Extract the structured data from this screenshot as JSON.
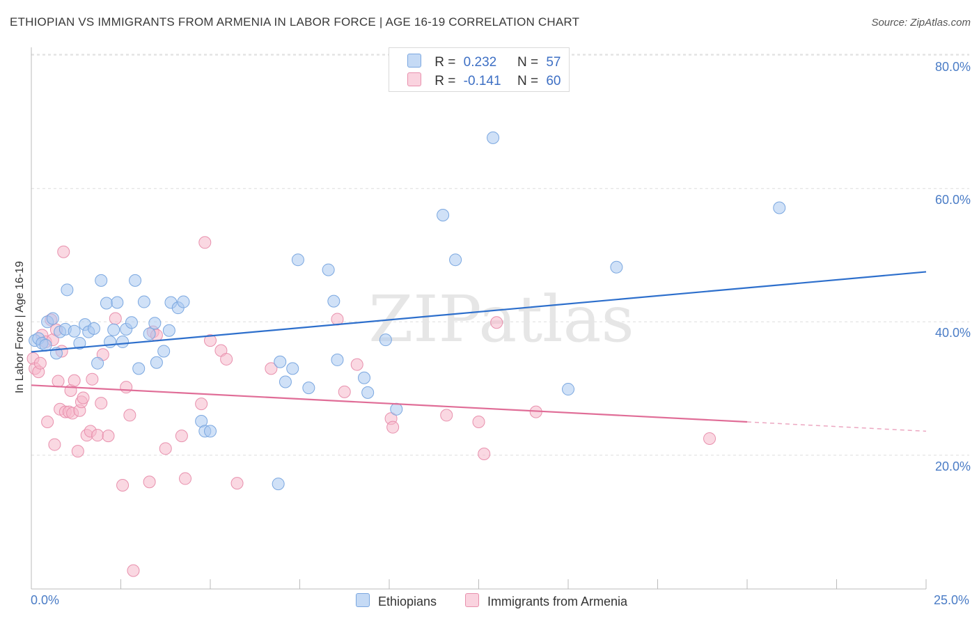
{
  "chart_data": {
    "type": "scatter",
    "title": "ETHIOPIAN VS IMMIGRANTS FROM ARMENIA IN LABOR FORCE | AGE 16-19 CORRELATION CHART",
    "source": "Source: ZipAtlas.com",
    "xlabel": "",
    "ylabel": "In Labor Force | Age 16-19",
    "xlim": [
      0,
      25
    ],
    "ylim": [
      0,
      83
    ],
    "x_tick_labels": [
      "0.0%",
      "25.0%"
    ],
    "y_tick_labels": [
      "80.0%",
      "60.0%",
      "40.0%",
      "20.0%"
    ],
    "y_ticks": [
      80,
      60,
      40,
      20
    ],
    "watermark": "ZIPatlas",
    "colors": {
      "ethiopians_fill": "#a9c8f0",
      "ethiopians_stroke": "#7aa7e0",
      "ethiopians_line": "#2d6fcc",
      "armenia_fill": "#f5b8cb",
      "armenia_stroke": "#e890ad",
      "armenia_line": "#e06d97",
      "axis_text": "#4a7cc6",
      "grid": "#dddddd"
    },
    "legend": {
      "rows": [
        {
          "r_label": "R =",
          "r_value": "0.232",
          "n_label": "N =",
          "n_value": "57"
        },
        {
          "r_label": "R =",
          "r_value": "-0.141",
          "n_label": "N =",
          "n_value": "60"
        }
      ]
    },
    "series": [
      {
        "name": "Ethiopians",
        "trend": {
          "x0": 0,
          "y0": 35.5,
          "x1": 25,
          "y1": 47.5
        },
        "points": [
          [
            0.1,
            37.2
          ],
          [
            0.2,
            37.5
          ],
          [
            0.3,
            36.8
          ],
          [
            0.4,
            36.5
          ],
          [
            0.45,
            40.0
          ],
          [
            0.6,
            40.5
          ],
          [
            0.7,
            35.3
          ],
          [
            0.8,
            38.5
          ],
          [
            0.95,
            38.9
          ],
          [
            1.0,
            44.8
          ],
          [
            1.2,
            38.6
          ],
          [
            1.35,
            36.8
          ],
          [
            1.5,
            39.6
          ],
          [
            1.6,
            38.5
          ],
          [
            1.75,
            39.0
          ],
          [
            1.85,
            33.8
          ],
          [
            1.95,
            46.2
          ],
          [
            2.1,
            42.8
          ],
          [
            2.2,
            37.0
          ],
          [
            2.3,
            38.8
          ],
          [
            2.4,
            42.9
          ],
          [
            2.55,
            37.0
          ],
          [
            2.65,
            38.9
          ],
          [
            2.8,
            39.9
          ],
          [
            2.9,
            46.2
          ],
          [
            3.0,
            33.0
          ],
          [
            3.15,
            43.0
          ],
          [
            3.3,
            38.2
          ],
          [
            3.45,
            39.8
          ],
          [
            3.5,
            33.9
          ],
          [
            3.7,
            35.6
          ],
          [
            3.85,
            38.7
          ],
          [
            3.9,
            42.9
          ],
          [
            4.1,
            42.1
          ],
          [
            4.25,
            43.0
          ],
          [
            4.75,
            25.1
          ],
          [
            4.85,
            23.6
          ],
          [
            5.0,
            23.6
          ],
          [
            6.9,
            15.7
          ],
          [
            6.95,
            34.0
          ],
          [
            7.1,
            31.0
          ],
          [
            7.3,
            33.0
          ],
          [
            7.45,
            49.3
          ],
          [
            7.75,
            30.1
          ],
          [
            8.3,
            47.8
          ],
          [
            8.45,
            43.1
          ],
          [
            8.55,
            34.3
          ],
          [
            9.3,
            31.6
          ],
          [
            9.4,
            29.4
          ],
          [
            9.9,
            37.3
          ],
          [
            10.2,
            26.9
          ],
          [
            11.5,
            56.0
          ],
          [
            11.85,
            49.3
          ],
          [
            12.9,
            67.6
          ],
          [
            15.0,
            29.9
          ],
          [
            16.35,
            48.2
          ],
          [
            20.9,
            57.1
          ]
        ]
      },
      {
        "name": "Immigrants from Armenia",
        "trend": {
          "x0": 0,
          "y0": 30.5,
          "x1": 20,
          "y1": 25.0,
          "dash_x1": 25,
          "dash_y1": 23.6
        },
        "points": [
          [
            0.05,
            34.5
          ],
          [
            0.1,
            33.0
          ],
          [
            0.2,
            32.5
          ],
          [
            0.25,
            33.8
          ],
          [
            0.3,
            38.0
          ],
          [
            0.4,
            37.0
          ],
          [
            0.45,
            25.0
          ],
          [
            0.55,
            40.3
          ],
          [
            0.6,
            37.3
          ],
          [
            0.65,
            21.6
          ],
          [
            0.7,
            38.8
          ],
          [
            0.75,
            31.1
          ],
          [
            0.8,
            26.9
          ],
          [
            0.85,
            35.6
          ],
          [
            0.9,
            50.5
          ],
          [
            0.95,
            26.5
          ],
          [
            1.05,
            26.5
          ],
          [
            1.1,
            29.7
          ],
          [
            1.15,
            26.3
          ],
          [
            1.2,
            31.2
          ],
          [
            1.3,
            20.6
          ],
          [
            1.35,
            26.7
          ],
          [
            1.4,
            28.0
          ],
          [
            1.45,
            28.6
          ],
          [
            1.55,
            23.0
          ],
          [
            1.65,
            23.6
          ],
          [
            1.7,
            31.4
          ],
          [
            1.85,
            23.0
          ],
          [
            1.95,
            27.8
          ],
          [
            2.0,
            35.1
          ],
          [
            2.15,
            22.9
          ],
          [
            2.35,
            40.5
          ],
          [
            2.55,
            15.5
          ],
          [
            2.65,
            30.2
          ],
          [
            2.75,
            26.0
          ],
          [
            2.85,
            2.7
          ],
          [
            3.3,
            16.0
          ],
          [
            3.4,
            38.5
          ],
          [
            3.5,
            38.0
          ],
          [
            3.75,
            21.0
          ],
          [
            4.2,
            22.9
          ],
          [
            4.3,
            16.5
          ],
          [
            4.75,
            27.7
          ],
          [
            4.85,
            51.9
          ],
          [
            5.0,
            37.2
          ],
          [
            5.3,
            35.7
          ],
          [
            5.45,
            34.4
          ],
          [
            5.75,
            15.8
          ],
          [
            6.7,
            33.0
          ],
          [
            8.55,
            40.4
          ],
          [
            8.75,
            29.5
          ],
          [
            9.1,
            33.6
          ],
          [
            10.05,
            25.5
          ],
          [
            10.1,
            24.2
          ],
          [
            11.6,
            26.0
          ],
          [
            12.5,
            25.0
          ],
          [
            12.65,
            20.2
          ],
          [
            13.0,
            39.9
          ],
          [
            14.1,
            26.5
          ],
          [
            18.95,
            22.5
          ]
        ]
      }
    ]
  }
}
